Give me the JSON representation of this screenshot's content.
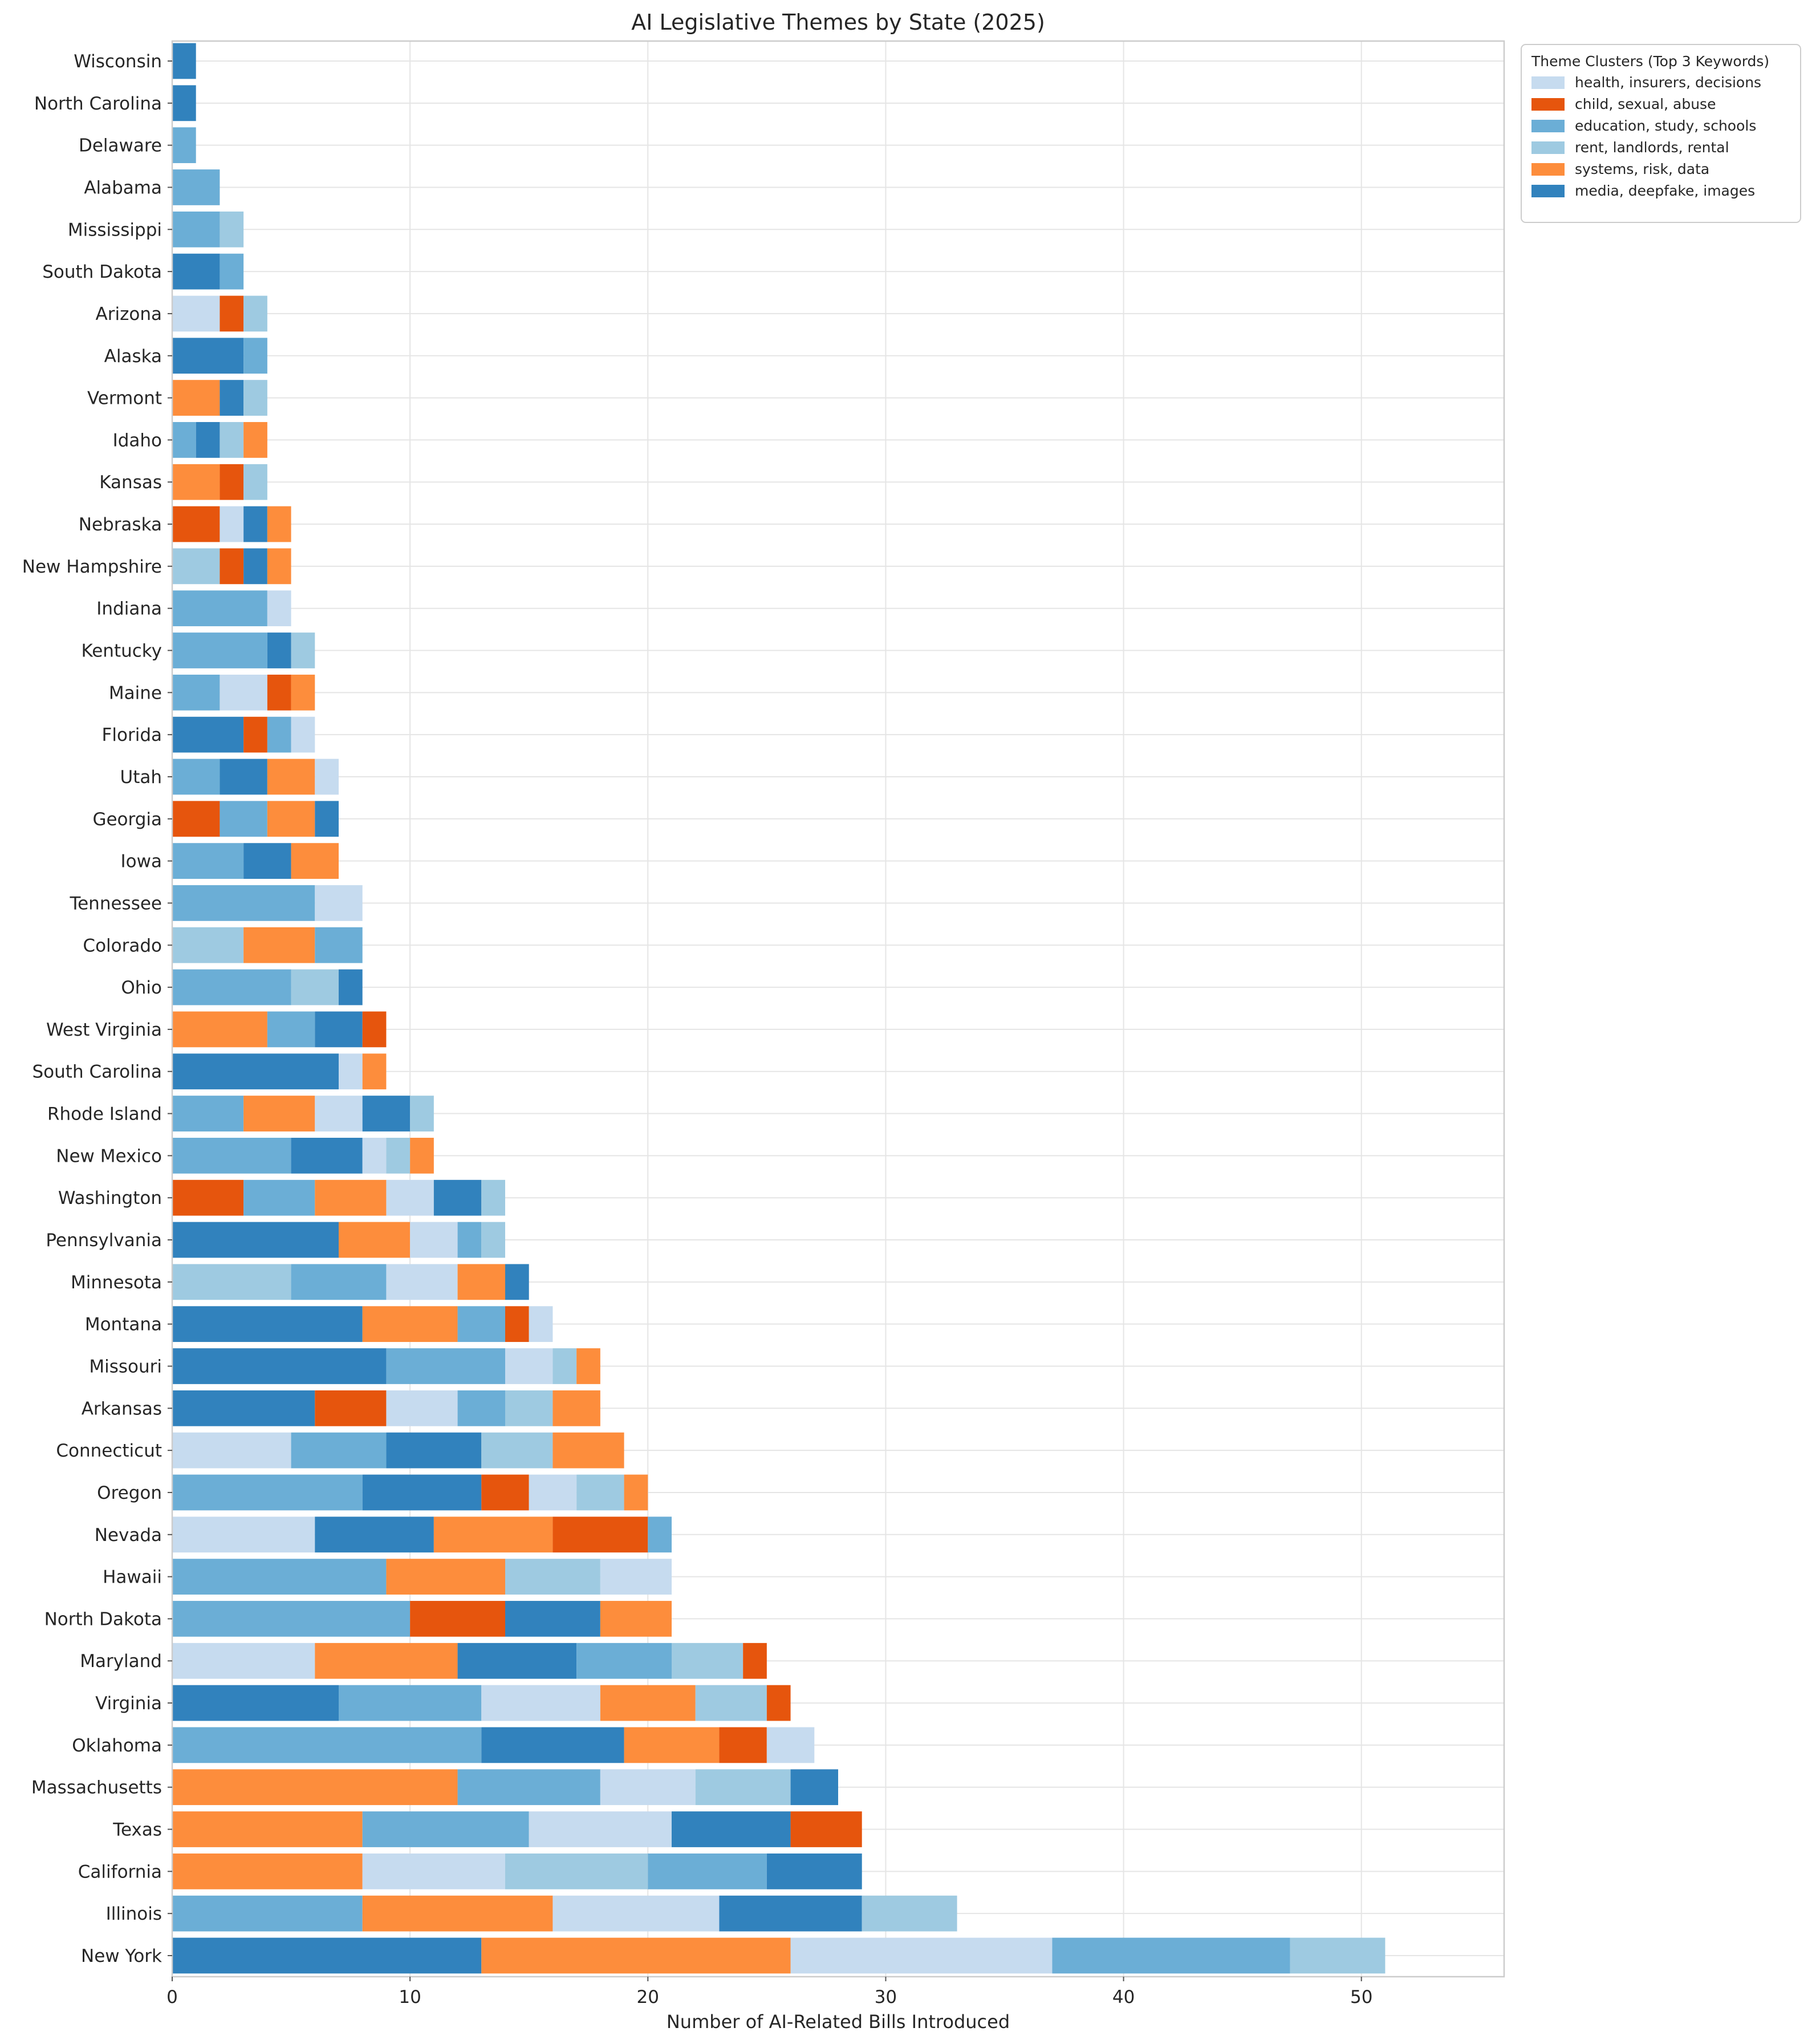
{
  "chart_data": {
    "type": "bar",
    "orientation": "horizontal",
    "stacked": true,
    "title": "AI Legislative Themes by State (2025)",
    "xlabel": "Number of AI-Related Bills Introduced",
    "ylabel": "",
    "xlim": [
      0,
      56
    ],
    "xticks": [
      0,
      10,
      20,
      30,
      40,
      50
    ],
    "grid": true,
    "legend": {
      "title": "Theme Clusters (Top 3 Keywords)",
      "placement": "outside-top-right"
    },
    "colors": {
      "health": "#c6dbef",
      "child": "#e6550d",
      "education": "#6baed6",
      "rent": "#9ecae1",
      "systems": "#fd8d3c",
      "media": "#3182bd"
    },
    "series": [
      {
        "key": "health",
        "name": "health,  insurers,  decisions"
      },
      {
        "key": "child",
        "name": "child,  sexual,  abuse"
      },
      {
        "key": "education",
        "name": "education,  study,  schools"
      },
      {
        "key": "rent",
        "name": "rent,  landlords,  rental"
      },
      {
        "key": "systems",
        "name": "systems,  risk,  data"
      },
      {
        "key": "media",
        "name": "media,  deepfake,  images"
      }
    ],
    "categories": [
      "Wisconsin",
      "North Carolina",
      "Delaware",
      "Alabama",
      "Mississippi",
      "South Dakota",
      "Arizona",
      "Alaska",
      "Vermont",
      "Idaho",
      "Kansas",
      "Nebraska",
      "New Hampshire",
      "Indiana",
      "Kentucky",
      "Maine",
      "Florida",
      "Utah",
      "Georgia",
      "Iowa",
      "Tennessee",
      "Colorado",
      "Ohio",
      "West Virginia",
      "South Carolina",
      "Rhode Island",
      "New Mexico",
      "Washington",
      "Pennsylvania",
      "Minnesota",
      "Montana",
      "Missouri",
      "Arkansas",
      "Connecticut",
      "Oregon",
      "Nevada",
      "Hawaii",
      "North Dakota",
      "Maryland",
      "Virginia",
      "Oklahoma",
      "Massachusetts",
      "Texas",
      "California",
      "Illinois",
      "New York"
    ],
    "bars": [
      [
        [
          "media",
          1
        ]
      ],
      [
        [
          "media",
          1
        ]
      ],
      [
        [
          "education",
          1
        ]
      ],
      [
        [
          "education",
          2
        ]
      ],
      [
        [
          "education",
          2
        ],
        [
          "rent",
          1
        ]
      ],
      [
        [
          "media",
          2
        ],
        [
          "education",
          1
        ]
      ],
      [
        [
          "health",
          2
        ],
        [
          "child",
          1
        ],
        [
          "rent",
          1
        ]
      ],
      [
        [
          "media",
          3
        ],
        [
          "education",
          1
        ]
      ],
      [
        [
          "systems",
          2
        ],
        [
          "media",
          1
        ],
        [
          "rent",
          1
        ]
      ],
      [
        [
          "education",
          1
        ],
        [
          "media",
          1
        ],
        [
          "rent",
          1
        ],
        [
          "systems",
          1
        ]
      ],
      [
        [
          "systems",
          2
        ],
        [
          "child",
          1
        ],
        [
          "rent",
          1
        ]
      ],
      [
        [
          "child",
          2
        ],
        [
          "health",
          1
        ],
        [
          "media",
          1
        ],
        [
          "systems",
          1
        ]
      ],
      [
        [
          "rent",
          2
        ],
        [
          "child",
          1
        ],
        [
          "media",
          1
        ],
        [
          "systems",
          1
        ]
      ],
      [
        [
          "education",
          4
        ],
        [
          "health",
          1
        ]
      ],
      [
        [
          "education",
          4
        ],
        [
          "media",
          1
        ],
        [
          "rent",
          1
        ]
      ],
      [
        [
          "education",
          2
        ],
        [
          "health",
          2
        ],
        [
          "child",
          1
        ],
        [
          "systems",
          1
        ]
      ],
      [
        [
          "media",
          3
        ],
        [
          "child",
          1
        ],
        [
          "education",
          1
        ],
        [
          "health",
          1
        ]
      ],
      [
        [
          "education",
          2
        ],
        [
          "media",
          2
        ],
        [
          "systems",
          2
        ],
        [
          "health",
          1
        ]
      ],
      [
        [
          "child",
          2
        ],
        [
          "education",
          2
        ],
        [
          "systems",
          2
        ],
        [
          "media",
          1
        ]
      ],
      [
        [
          "education",
          3
        ],
        [
          "media",
          2
        ],
        [
          "systems",
          2
        ]
      ],
      [
        [
          "education",
          6
        ],
        [
          "health",
          2
        ]
      ],
      [
        [
          "rent",
          3
        ],
        [
          "systems",
          3
        ],
        [
          "education",
          2
        ]
      ],
      [
        [
          "education",
          5
        ],
        [
          "rent",
          2
        ],
        [
          "media",
          1
        ]
      ],
      [
        [
          "systems",
          4
        ],
        [
          "education",
          2
        ],
        [
          "media",
          2
        ],
        [
          "child",
          1
        ]
      ],
      [
        [
          "media",
          7
        ],
        [
          "health",
          1
        ],
        [
          "systems",
          1
        ]
      ],
      [
        [
          "education",
          3
        ],
        [
          "systems",
          3
        ],
        [
          "health",
          2
        ],
        [
          "media",
          2
        ],
        [
          "rent",
          1
        ]
      ],
      [
        [
          "education",
          5
        ],
        [
          "media",
          3
        ],
        [
          "health",
          1
        ],
        [
          "rent",
          1
        ],
        [
          "systems",
          1
        ]
      ],
      [
        [
          "child",
          3
        ],
        [
          "education",
          3
        ],
        [
          "systems",
          3
        ],
        [
          "health",
          2
        ],
        [
          "media",
          2
        ],
        [
          "rent",
          1
        ]
      ],
      [
        [
          "media",
          7
        ],
        [
          "systems",
          3
        ],
        [
          "health",
          2
        ],
        [
          "education",
          1
        ],
        [
          "rent",
          1
        ]
      ],
      [
        [
          "rent",
          5
        ],
        [
          "education",
          4
        ],
        [
          "health",
          3
        ],
        [
          "systems",
          2
        ],
        [
          "media",
          1
        ]
      ],
      [
        [
          "media",
          8
        ],
        [
          "systems",
          4
        ],
        [
          "education",
          2
        ],
        [
          "child",
          1
        ],
        [
          "health",
          1
        ]
      ],
      [
        [
          "media",
          9
        ],
        [
          "education",
          5
        ],
        [
          "health",
          2
        ],
        [
          "rent",
          1
        ],
        [
          "systems",
          1
        ]
      ],
      [
        [
          "media",
          6
        ],
        [
          "child",
          3
        ],
        [
          "health",
          3
        ],
        [
          "education",
          2
        ],
        [
          "rent",
          2
        ],
        [
          "systems",
          2
        ]
      ],
      [
        [
          "health",
          5
        ],
        [
          "education",
          4
        ],
        [
          "media",
          4
        ],
        [
          "rent",
          3
        ],
        [
          "systems",
          3
        ]
      ],
      [
        [
          "education",
          8
        ],
        [
          "media",
          5
        ],
        [
          "child",
          2
        ],
        [
          "health",
          2
        ],
        [
          "rent",
          2
        ],
        [
          "systems",
          1
        ]
      ],
      [
        [
          "health",
          6
        ],
        [
          "media",
          5
        ],
        [
          "systems",
          5
        ],
        [
          "child",
          4
        ],
        [
          "education",
          1
        ]
      ],
      [
        [
          "education",
          9
        ],
        [
          "systems",
          5
        ],
        [
          "rent",
          4
        ],
        [
          "health",
          3
        ]
      ],
      [
        [
          "education",
          10
        ],
        [
          "child",
          4
        ],
        [
          "media",
          4
        ],
        [
          "systems",
          3
        ]
      ],
      [
        [
          "health",
          6
        ],
        [
          "systems",
          6
        ],
        [
          "media",
          5
        ],
        [
          "education",
          4
        ],
        [
          "rent",
          3
        ],
        [
          "child",
          1
        ]
      ],
      [
        [
          "media",
          7
        ],
        [
          "education",
          6
        ],
        [
          "health",
          5
        ],
        [
          "systems",
          4
        ],
        [
          "rent",
          3
        ],
        [
          "child",
          1
        ]
      ],
      [
        [
          "education",
          13
        ],
        [
          "media",
          6
        ],
        [
          "systems",
          4
        ],
        [
          "child",
          2
        ],
        [
          "health",
          2
        ]
      ],
      [
        [
          "systems",
          12
        ],
        [
          "education",
          6
        ],
        [
          "health",
          4
        ],
        [
          "rent",
          4
        ],
        [
          "media",
          2
        ]
      ],
      [
        [
          "systems",
          8
        ],
        [
          "education",
          7
        ],
        [
          "health",
          6
        ],
        [
          "media",
          5
        ],
        [
          "child",
          3
        ]
      ],
      [
        [
          "systems",
          8
        ],
        [
          "health",
          6
        ],
        [
          "rent",
          6
        ],
        [
          "education",
          5
        ],
        [
          "media",
          4
        ]
      ],
      [
        [
          "education",
          8
        ],
        [
          "systems",
          8
        ],
        [
          "health",
          7
        ],
        [
          "media",
          6
        ],
        [
          "rent",
          4
        ]
      ],
      [
        [
          "media",
          13
        ],
        [
          "systems",
          13
        ],
        [
          "health",
          11
        ],
        [
          "education",
          10
        ],
        [
          "rent",
          4
        ]
      ]
    ]
  }
}
